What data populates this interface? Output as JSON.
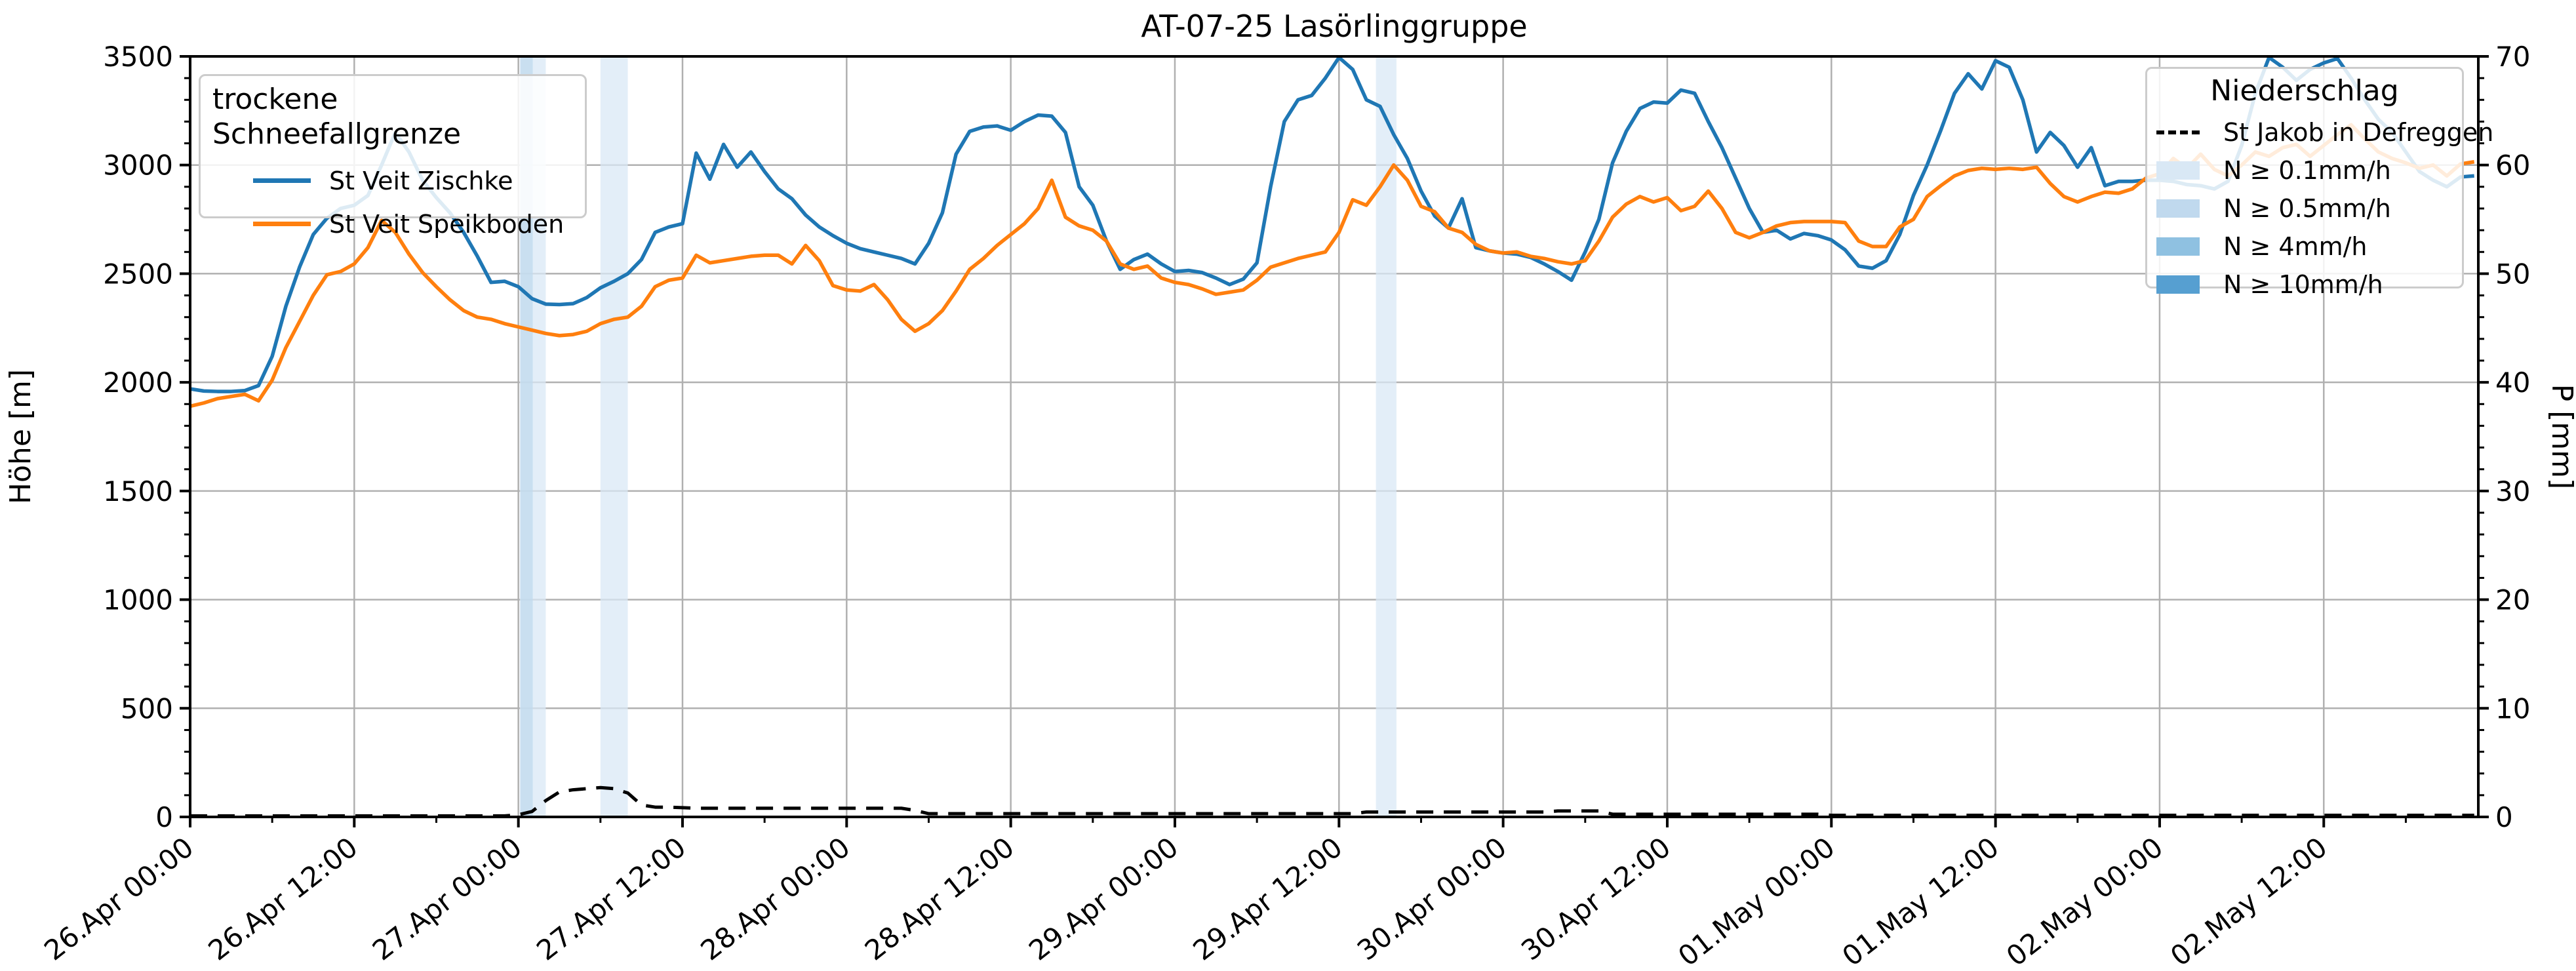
{
  "title": "AT-07-25 Lasörlinggruppe",
  "axes": {
    "y_left_label": "Höhe [m]",
    "y_right_label": "P [mm]",
    "y_left_ticks": [
      "0",
      "500",
      "1000",
      "1500",
      "2000",
      "2500",
      "3000",
      "3500"
    ],
    "y_right_ticks": [
      "0",
      "10",
      "20",
      "30",
      "40",
      "50",
      "60",
      "70"
    ],
    "x_ticks": [
      "26.Apr 00:00",
      "26.Apr 12:00",
      "27.Apr 00:00",
      "27.Apr 12:00",
      "28.Apr 00:00",
      "28.Apr 12:00",
      "29.Apr 00:00",
      "29.Apr 12:00",
      "30.Apr 00:00",
      "30.Apr 12:00",
      "01.May 00:00",
      "01.May 12:00",
      "02.May 00:00",
      "02.May 12:00"
    ]
  },
  "legend_snowline": {
    "title": "trockene Schneefallgrenze",
    "items": [
      {
        "label": "St Veit Zischke",
        "color": "#1f77b4"
      },
      {
        "label": "St Veit Speikboden",
        "color": "#ff7f0e"
      }
    ]
  },
  "legend_precip": {
    "title": "Niederschlag",
    "line_item": {
      "label": "St Jakob in Defreggen",
      "color": "#000000"
    },
    "patch_items": [
      {
        "label": "N ≥ 0.1mm/h",
        "color": "#d9e8f5"
      },
      {
        "label": "N ≥ 0.5mm/h",
        "color": "#c0d9ee"
      },
      {
        "label": "N ≥ 4mm/h",
        "color": "#8fc1e1"
      },
      {
        "label": "N ≥ 10mm/h",
        "color": "#569fd1"
      }
    ]
  },
  "chart_data": {
    "type": "line",
    "title": "AT-07-25 Lasörlinggruppe",
    "xlabel": "",
    "ylabel_left": "Höhe [m]",
    "ylabel_right": "P [mm]",
    "x_unit": "hours since 26.Apr 00:00",
    "x_step_hours": 1,
    "x_range_hours": [
      0,
      167
    ],
    "x_axis_end_hours": 167.3,
    "x_tick_labels": [
      "26.Apr 00:00",
      "26.Apr 12:00",
      "27.Apr 00:00",
      "27.Apr 12:00",
      "28.Apr 00:00",
      "28.Apr 12:00",
      "29.Apr 00:00",
      "29.Apr 12:00",
      "30.Apr 00:00",
      "30.Apr 12:00",
      "01.May 00:00",
      "01.May 12:00",
      "02.May 00:00",
      "02.May 12:00"
    ],
    "x_major_tick_hours": 12,
    "x_minor_tick_hours": 6,
    "ylim_left": [
      0,
      3500
    ],
    "ylim_right": [
      0,
      70
    ],
    "y_left_minor_step": 100,
    "y_right_minor_step": 2,
    "grid": true,
    "series": [
      {
        "name": "St Veit Zischke",
        "axis": "left",
        "color": "#1f77b4",
        "style": "solid",
        "values": [
          1970,
          1960,
          1958,
          1958,
          1962,
          1985,
          2120,
          2350,
          2530,
          2680,
          2755,
          2800,
          2815,
          2860,
          3000,
          3150,
          3060,
          2930,
          2850,
          2780,
          2690,
          2580,
          2460,
          2465,
          2440,
          2385,
          2360,
          2358,
          2362,
          2390,
          2435,
          2465,
          2500,
          2565,
          2690,
          2715,
          2730,
          3055,
          2935,
          3095,
          2990,
          3060,
          2970,
          2890,
          2845,
          2770,
          2715,
          2675,
          2640,
          2615,
          2600,
          2585,
          2570,
          2545,
          2640,
          2780,
          3050,
          3155,
          3175,
          3180,
          3160,
          3200,
          3230,
          3225,
          3150,
          2900,
          2815,
          2650,
          2520,
          2565,
          2590,
          2545,
          2510,
          2515,
          2505,
          2480,
          2450,
          2475,
          2550,
          2900,
          3200,
          3300,
          3320,
          3400,
          3495,
          3440,
          3300,
          3270,
          3140,
          3030,
          2880,
          2765,
          2710,
          2845,
          2620,
          2605,
          2595,
          2590,
          2575,
          2545,
          2510,
          2470,
          2600,
          2750,
          3010,
          3155,
          3260,
          3290,
          3285,
          3345,
          3330,
          3200,
          3080,
          2940,
          2800,
          2690,
          2700,
          2660,
          2685,
          2675,
          2655,
          2610,
          2535,
          2525,
          2560,
          2680,
          2860,
          3000,
          3160,
          3330,
          3420,
          3350,
          3480,
          3450,
          3300,
          3060,
          3150,
          3090,
          2990,
          3080,
          2905,
          2925,
          2925,
          2930,
          2930,
          2925,
          2910,
          2905,
          2890,
          2925,
          3090,
          3330,
          3495,
          3450,
          3390,
          3440,
          3470,
          3490,
          3400,
          3300,
          3210,
          3150,
          3060,
          2970,
          2930,
          2900,
          2945,
          2950
        ]
      },
      {
        "name": "St Veit Speikboden",
        "axis": "left",
        "color": "#ff7f0e",
        "style": "solid",
        "values": [
          1890,
          1905,
          1925,
          1935,
          1945,
          1915,
          2010,
          2160,
          2280,
          2400,
          2495,
          2510,
          2545,
          2620,
          2745,
          2690,
          2590,
          2505,
          2440,
          2380,
          2330,
          2300,
          2290,
          2270,
          2255,
          2240,
          2225,
          2215,
          2220,
          2235,
          2270,
          2290,
          2300,
          2350,
          2440,
          2470,
          2480,
          2585,
          2550,
          2560,
          2570,
          2580,
          2585,
          2585,
          2545,
          2630,
          2560,
          2445,
          2425,
          2420,
          2450,
          2380,
          2290,
          2235,
          2270,
          2330,
          2420,
          2520,
          2570,
          2630,
          2680,
          2730,
          2800,
          2930,
          2760,
          2720,
          2700,
          2650,
          2545,
          2520,
          2535,
          2480,
          2460,
          2450,
          2430,
          2405,
          2415,
          2425,
          2470,
          2530,
          2550,
          2570,
          2585,
          2600,
          2690,
          2840,
          2815,
          2900,
          3000,
          2930,
          2810,
          2785,
          2710,
          2690,
          2635,
          2605,
          2595,
          2600,
          2580,
          2570,
          2555,
          2545,
          2560,
          2650,
          2760,
          2820,
          2855,
          2830,
          2850,
          2790,
          2810,
          2880,
          2800,
          2690,
          2665,
          2690,
          2720,
          2735,
          2740,
          2740,
          2740,
          2735,
          2650,
          2625,
          2625,
          2715,
          2750,
          2855,
          2905,
          2950,
          2975,
          2985,
          2980,
          2985,
          2980,
          2990,
          2915,
          2855,
          2830,
          2855,
          2875,
          2870,
          2890,
          2940,
          2960,
          3030,
          2985,
          3050,
          2980,
          2950,
          3000,
          3060,
          3040,
          3080,
          3095,
          3040,
          3090,
          3140,
          3185,
          3120,
          3060,
          3030,
          3010,
          2985,
          3000,
          2950,
          3005,
          3015
        ]
      },
      {
        "name": "St Jakob in Defreggen",
        "axis": "right",
        "color": "#000000",
        "style": "dashed",
        "values": [
          0.1,
          0.1,
          0.1,
          0.1,
          0.1,
          0.1,
          0.1,
          0.1,
          0.1,
          0.1,
          0.1,
          0.1,
          0.1,
          0.1,
          0.1,
          0.1,
          0.1,
          0.1,
          0.1,
          0.1,
          0.1,
          0.1,
          0.1,
          0.1,
          0.2,
          0.5,
          1.5,
          2.3,
          2.5,
          2.6,
          2.7,
          2.6,
          2.2,
          1.1,
          0.9,
          0.9,
          0.85,
          0.8,
          0.8,
          0.8,
          0.8,
          0.8,
          0.8,
          0.8,
          0.8,
          0.8,
          0.8,
          0.8,
          0.8,
          0.8,
          0.8,
          0.8,
          0.8,
          0.6,
          0.3,
          0.3,
          0.3,
          0.3,
          0.3,
          0.3,
          0.3,
          0.3,
          0.3,
          0.3,
          0.3,
          0.3,
          0.3,
          0.3,
          0.3,
          0.3,
          0.3,
          0.3,
          0.3,
          0.3,
          0.3,
          0.3,
          0.3,
          0.3,
          0.3,
          0.3,
          0.3,
          0.3,
          0.3,
          0.3,
          0.3,
          0.3,
          0.45,
          0.45,
          0.45,
          0.45,
          0.45,
          0.45,
          0.45,
          0.45,
          0.45,
          0.45,
          0.45,
          0.45,
          0.45,
          0.45,
          0.55,
          0.55,
          0.55,
          0.55,
          0.25,
          0.25,
          0.25,
          0.25,
          0.25,
          0.25,
          0.25,
          0.25,
          0.25,
          0.25,
          0.25,
          0.25,
          0.25,
          0.25,
          0.25,
          0.25,
          0.15,
          0.15,
          0.15,
          0.15,
          0.15,
          0.15,
          0.15,
          0.15,
          0.15,
          0.15,
          0.15,
          0.15,
          0.15,
          0.15,
          0.15,
          0.15,
          0.15,
          0.15,
          0.15,
          0.15,
          0.15,
          0.15,
          0.15,
          0.15,
          0.15,
          0.15,
          0.15,
          0.15,
          0.15,
          0.15,
          0.15,
          0.15,
          0.15,
          0.15,
          0.15,
          0.15,
          0.15,
          0.15,
          0.15,
          0.15,
          0.15,
          0.15,
          0.15,
          0.15,
          0.15,
          0.15,
          0.15,
          0.15
        ]
      }
    ],
    "precip_bands": [
      {
        "start_hour": 24.1,
        "end_hour": 26.0,
        "threshold": "N ≥ 0.1mm/h",
        "color": "#d9e8f5"
      },
      {
        "start_hour": 24.15,
        "end_hour": 25.05,
        "threshold": "N ≥ 0.5mm/h",
        "color": "#c0d9ee"
      },
      {
        "start_hour": 30.0,
        "end_hour": 32.0,
        "threshold": "N ≥ 0.1mm/h",
        "color": "#d9e8f5"
      },
      {
        "start_hour": 86.7,
        "end_hour": 88.2,
        "threshold": "N ≥ 0.1mm/h",
        "color": "#d9e8f5"
      }
    ],
    "legend_left_title": "trockene Schneefallgrenze",
    "legend_right_title": "Niederschlag",
    "colors": {
      "grid": "#b0b0b0",
      "spine": "#000000",
      "background": "#ffffff",
      "series_blue": "#1f77b4",
      "series_orange": "#ff7f0e"
    }
  }
}
